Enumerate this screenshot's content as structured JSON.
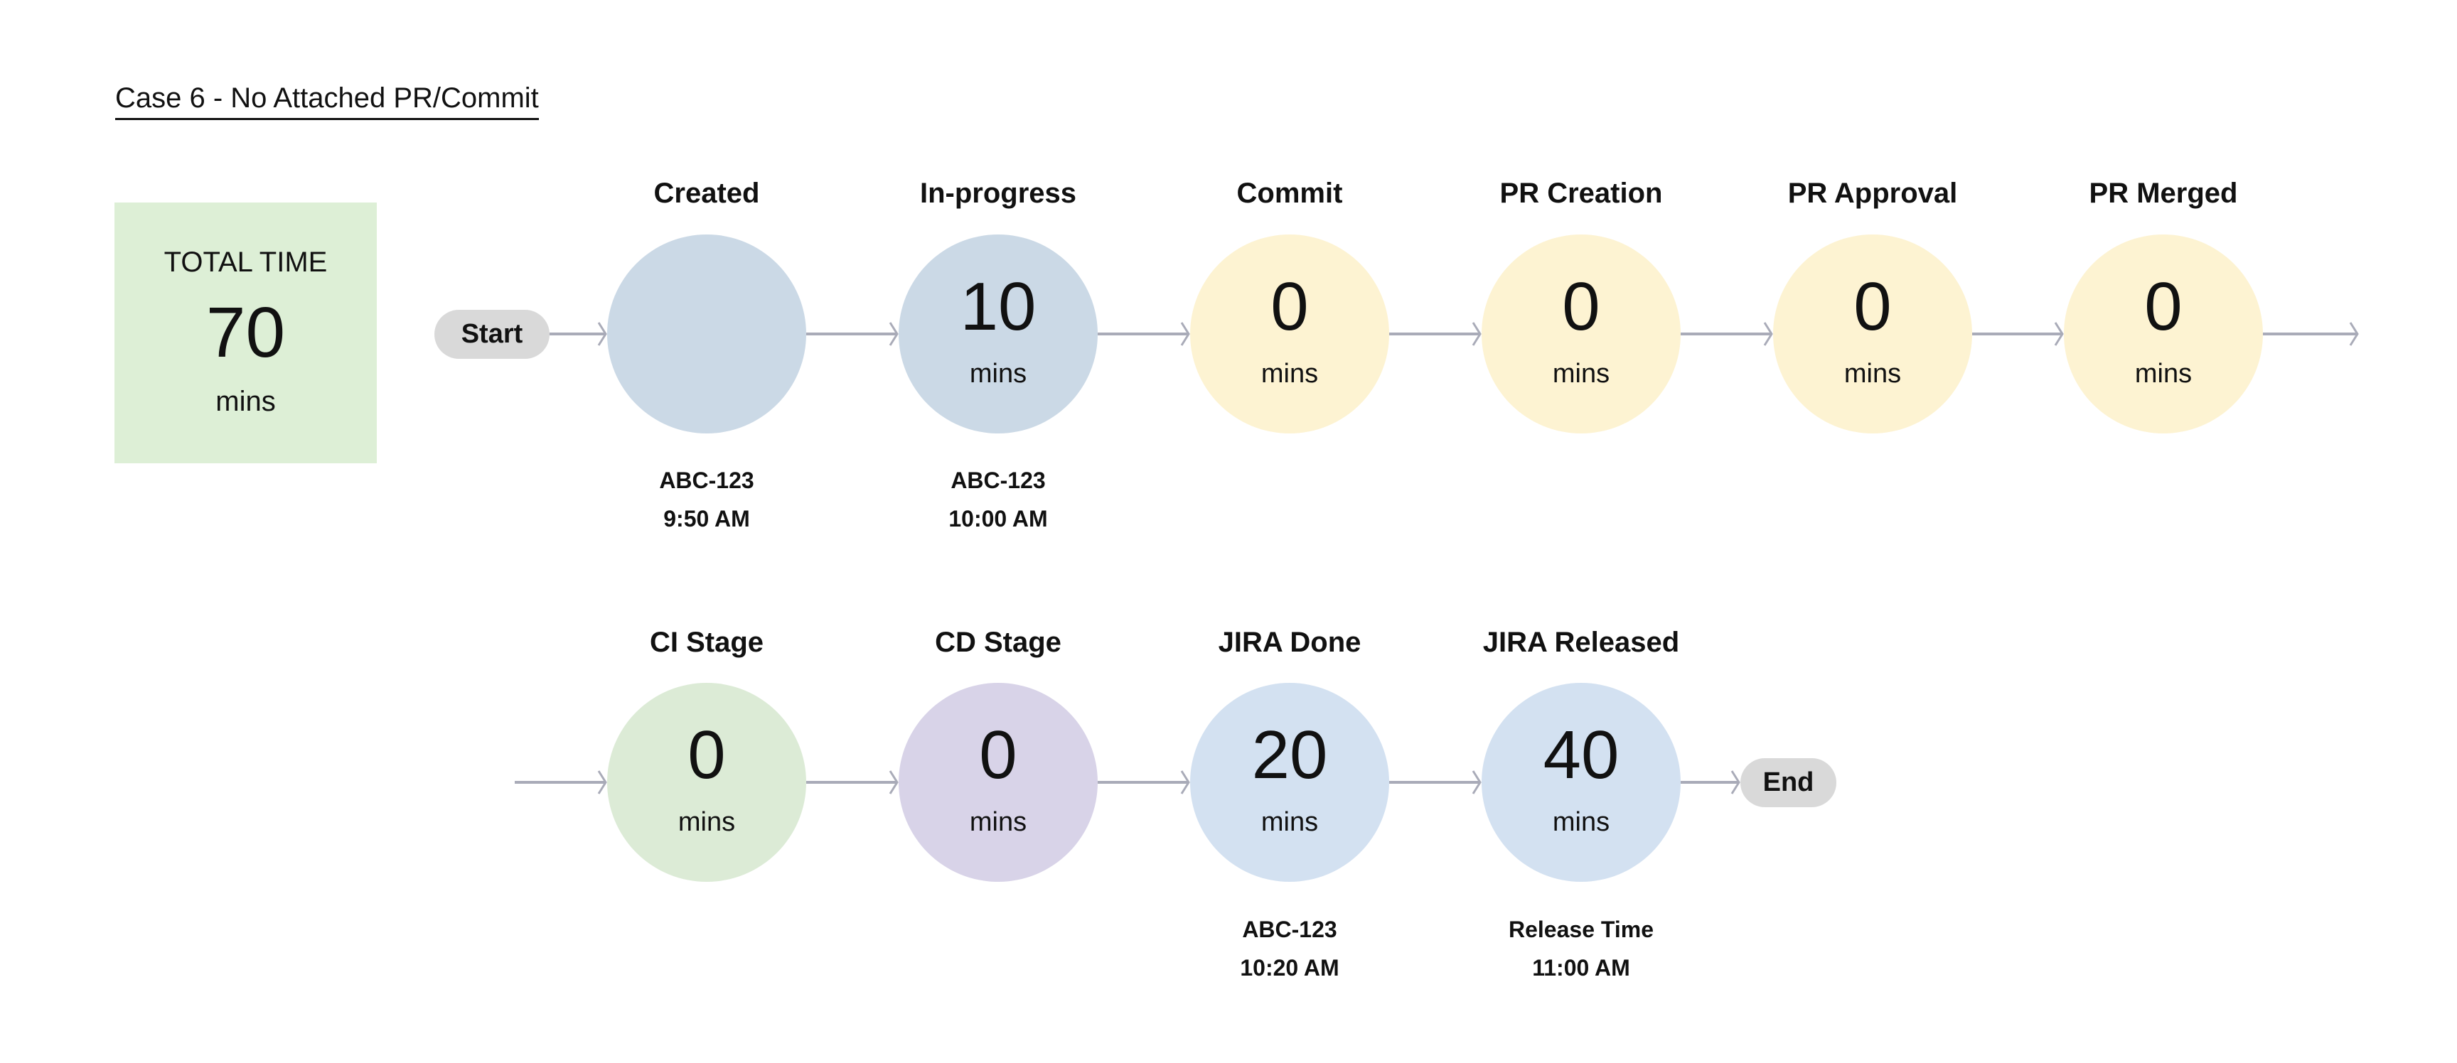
{
  "title": "Case 6 - No Attached PR/Commit",
  "total": {
    "label": "TOTAL TIME",
    "value": "70",
    "unit": "mins"
  },
  "start_label": "Start",
  "end_label": "End",
  "colors": {
    "arrow": "#A9ABB8",
    "pill": "#D9D9D9",
    "total_bg": "#DDEFD6"
  },
  "row1": [
    {
      "label": "Created",
      "value": "",
      "unit": "",
      "sub1": "ABC-123",
      "sub2": "9:50 AM",
      "color": "#CBD9E6"
    },
    {
      "label": "In-progress",
      "value": "10",
      "unit": "mins",
      "sub1": "ABC-123",
      "sub2": "10:00 AM",
      "color": "#CBD9E6"
    },
    {
      "label": "Commit",
      "value": "0",
      "unit": "mins",
      "sub1": "",
      "sub2": "",
      "color": "#FDF3D2"
    },
    {
      "label": "PR Creation",
      "value": "0",
      "unit": "mins",
      "sub1": "",
      "sub2": "",
      "color": "#FDF3D2"
    },
    {
      "label": "PR Approval",
      "value": "0",
      "unit": "mins",
      "sub1": "",
      "sub2": "",
      "color": "#FDF3D2"
    },
    {
      "label": "PR Merged",
      "value": "0",
      "unit": "mins",
      "sub1": "",
      "sub2": "",
      "color": "#FDF3D2"
    }
  ],
  "row2": [
    {
      "label": "CI Stage",
      "value": "0",
      "unit": "mins",
      "sub1": "",
      "sub2": "",
      "color": "#DCEBD6"
    },
    {
      "label": "CD Stage",
      "value": "0",
      "unit": "mins",
      "sub1": "",
      "sub2": "",
      "color": "#D8D3E8"
    },
    {
      "label": "JIRA Done",
      "value": "20",
      "unit": "mins",
      "sub1": "ABC-123",
      "sub2": "10:20 AM",
      "color": "#D3E1F1"
    },
    {
      "label": "JIRA Released",
      "value": "40",
      "unit": "mins",
      "sub1": "Release Time",
      "sub2": "11:00 AM",
      "color": "#D3E1F1"
    }
  ]
}
